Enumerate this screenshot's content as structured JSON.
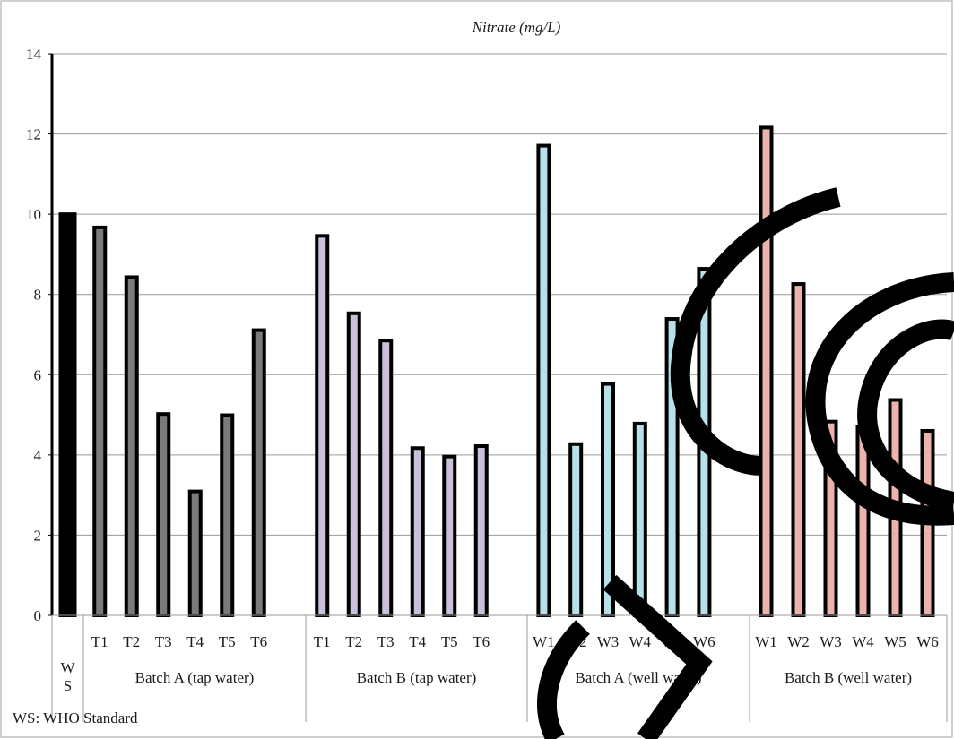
{
  "chart_data": {
    "type": "bar",
    "title": "Nitrate (mg/L)",
    "xlabel": "",
    "ylabel": "",
    "ylim": [
      0,
      14
    ],
    "yticks": [
      0,
      2,
      4,
      6,
      8,
      10,
      12,
      14
    ],
    "grid": true,
    "legend": "none",
    "groups": [
      {
        "label": "W S",
        "label_lines": [
          "W",
          "S"
        ],
        "color": "#000000",
        "categories": [
          ""
        ],
        "values": [
          10.0
        ]
      },
      {
        "label": "Batch A (tap water)",
        "color": "#7a7a7a",
        "categories": [
          "T1",
          "T2",
          "T3",
          "T4",
          "T5",
          "T6"
        ],
        "values": [
          9.67,
          8.43,
          5.02,
          3.09,
          4.99,
          7.11
        ]
      },
      {
        "label": "Batch B (tap water)",
        "color": "#cbc0da",
        "categories": [
          "T1",
          "T2",
          "T3",
          "T4",
          "T5",
          "T6"
        ],
        "values": [
          9.46,
          7.53,
          6.85,
          4.17,
          3.96,
          4.22
        ]
      },
      {
        "label": "Batch A (well water)",
        "color": "#b6e0ea",
        "categories": [
          "W1",
          "W2",
          "W3",
          "W4",
          "W5",
          "W6"
        ],
        "values": [
          11.71,
          4.27,
          5.77,
          4.78,
          7.39,
          8.64
        ]
      },
      {
        "label": "Batch B (well water)",
        "color": "#eab3ae",
        "categories": [
          "W1",
          "W2",
          "W3",
          "W4",
          "W5",
          "W6"
        ],
        "values": [
          12.16,
          8.26,
          4.83,
          4.69,
          5.37,
          4.6
        ]
      }
    ]
  },
  "footnote": "WS: WHO Standard",
  "colors": {
    "gridline": "#9a9a9a",
    "frame": "#a0a0a0",
    "bar_outline": "#000000"
  }
}
